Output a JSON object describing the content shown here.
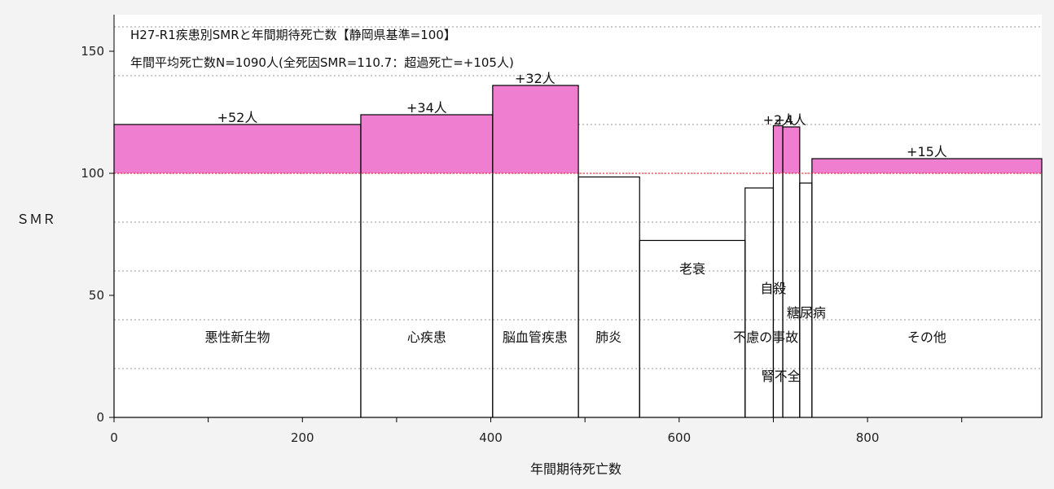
{
  "chart_data": {
    "type": "variable-width-bar",
    "title": "H27-R1疾患別SMRと年間期待死亡数【静岡県基準=100】",
    "subtitle": "年間平均死亡数N=1090人(全死因SMR=110.7：超過死亡=+105人)",
    "xlabel": "年間期待死亡数",
    "ylabel": "ＳＭＲ",
    "xlim": [
      0,
      985
    ],
    "ylim": [
      0,
      165
    ],
    "x_ticks": [
      0,
      200,
      400,
      600,
      800
    ],
    "x_tick_labels": [
      "0",
      "200",
      "400",
      "600",
      "800"
    ],
    "y_ticks": [
      0,
      50,
      100,
      150
    ],
    "y_tick_labels": [
      "0",
      "50",
      "100",
      "150"
    ],
    "baseline": 100,
    "grid": "horizontal-dotted",
    "colors": {
      "excess": "#f07ed0",
      "bar_border": "#000000",
      "baseline": "#e0102a",
      "grid": "#9a9a9a",
      "background": "#ffffff"
    },
    "bars": [
      {
        "category": "悪性新生物",
        "x0": 0,
        "x1": 262,
        "smr": 120,
        "excess_label": "+52人"
      },
      {
        "category": "心疾患",
        "x0": 262,
        "x1": 402,
        "smr": 124,
        "excess_label": "+34人"
      },
      {
        "category": "脳血管疾患",
        "x0": 402,
        "x1": 493,
        "smr": 136,
        "excess_label": "+32人"
      },
      {
        "category": "肺炎",
        "x0": 493,
        "x1": 558,
        "smr": 98.5,
        "excess_label": ""
      },
      {
        "category": "老衰",
        "x0": 558,
        "x1": 670,
        "smr": 72.5,
        "excess_label": ""
      },
      {
        "category": "不慮の事故",
        "x0": 670,
        "x1": 700,
        "smr": 94,
        "excess_label": ""
      },
      {
        "category": "自殺",
        "x0": 700,
        "x1": 710,
        "smr": 119.5,
        "excess_label": "+2人"
      },
      {
        "category": "腎不全",
        "x0": 710,
        "x1": 728,
        "smr": 119,
        "excess_label": "+4人"
      },
      {
        "category": "糖尿病",
        "x0": 728,
        "x1": 741,
        "smr": 96,
        "excess_label": ""
      },
      {
        "category": "その他",
        "x0": 741,
        "x1": 985,
        "smr": 106,
        "excess_label": "+15人"
      }
    ],
    "category_labels": [
      {
        "text": "悪性新生物",
        "x": 131,
        "y": 33
      },
      {
        "text": "心疾患",
        "x": 332,
        "y": 33
      },
      {
        "text": "脳血管疾患",
        "x": 447,
        "y": 33
      },
      {
        "text": "肺炎",
        "x": 525,
        "y": 33
      },
      {
        "text": "老衰",
        "x": 614,
        "y": 61
      },
      {
        "text": "自殺",
        "x": 700,
        "y": 53
      },
      {
        "text": "糖尿病",
        "x": 735,
        "y": 43
      },
      {
        "text": "不慮の事故",
        "x": 692,
        "y": 33
      },
      {
        "text": "腎不全",
        "x": 708,
        "y": 17
      },
      {
        "text": "その他",
        "x": 863,
        "y": 33
      }
    ],
    "excess_labels": [
      {
        "text": "+52人",
        "x": 131,
        "y": 123
      },
      {
        "text": "+34人",
        "x": 332,
        "y": 127
      },
      {
        "text": "+32人",
        "x": 447,
        "y": 139
      },
      {
        "text": "+2人",
        "x": 706,
        "y": 122
      },
      {
        "text": "+4人",
        "x": 718,
        "y": 122
      },
      {
        "text": "+15人",
        "x": 863,
        "y": 109
      }
    ]
  }
}
